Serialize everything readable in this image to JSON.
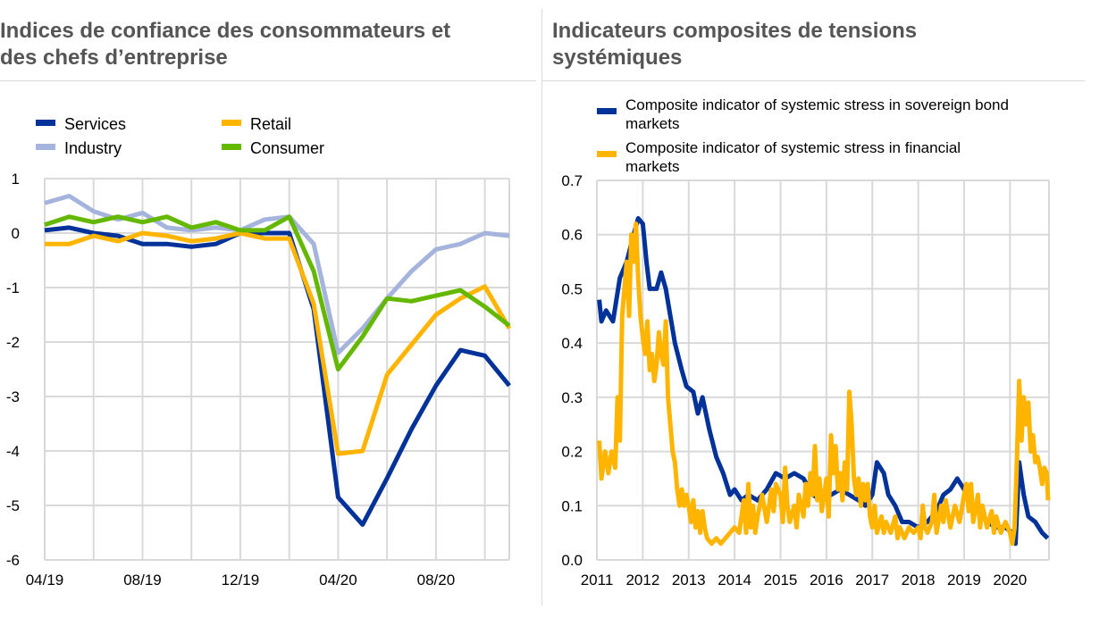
{
  "left_panel": {
    "title": "Indices de confiance des consommateurs et\ndes chefs d’entreprise",
    "chart_data": {
      "type": "line",
      "x": [
        "04/19",
        "05/19",
        "06/19",
        "07/19",
        "08/19",
        "09/19",
        "10/19",
        "11/19",
        "12/19",
        "01/20",
        "02/20",
        "03/20",
        "04/20",
        "05/20",
        "06/20",
        "07/20",
        "08/20",
        "09/20",
        "10/20",
        "11/20"
      ],
      "x_tick_labels": [
        "04/19",
        "08/19",
        "12/19",
        "04/20",
        "08/20"
      ],
      "ylim": [
        -6,
        1
      ],
      "y_ticks": [
        "1",
        "0",
        "-1",
        "-2",
        "-3",
        "-4",
        "-5",
        "-6"
      ],
      "grid": true,
      "legend_position": "top",
      "series": [
        {
          "name": "Services",
          "color": "#003299",
          "values": [
            0.05,
            0.1,
            0.0,
            -0.05,
            -0.2,
            -0.2,
            -0.25,
            -0.2,
            0.0,
            0.0,
            0.0,
            -1.4,
            -4.85,
            -5.35,
            -4.5,
            -3.6,
            -2.8,
            -2.15,
            -2.25,
            -2.8
          ]
        },
        {
          "name": "Industry",
          "color": "#a4b4dc",
          "values": [
            0.55,
            0.68,
            0.4,
            0.25,
            0.37,
            0.1,
            0.05,
            0.1,
            0.05,
            0.25,
            0.3,
            -0.2,
            -2.2,
            -1.75,
            -1.2,
            -0.7,
            -0.3,
            -0.2,
            0.0,
            -0.05
          ]
        },
        {
          "name": "Retail",
          "color": "#ffb400",
          "values": [
            -0.2,
            -0.2,
            -0.05,
            -0.15,
            0.0,
            -0.05,
            -0.15,
            -0.1,
            0.0,
            -0.1,
            -0.1,
            -1.3,
            -4.05,
            -4.0,
            -2.6,
            -2.05,
            -1.5,
            -1.2,
            -0.98,
            -1.75
          ]
        },
        {
          "name": "Consumer",
          "color": "#65b800",
          "values": [
            0.15,
            0.3,
            0.2,
            0.3,
            0.2,
            0.3,
            0.1,
            0.2,
            0.05,
            0.05,
            0.3,
            -0.7,
            -2.5,
            -1.9,
            -1.2,
            -1.25,
            -1.15,
            -1.05,
            -1.35,
            -1.7
          ]
        }
      ]
    }
  },
  "right_panel": {
    "title": "Indicateurs composites de tensions\nsystémiques",
    "chart_data": {
      "type": "line",
      "x_tick_labels": [
        "2011",
        "2012",
        "2013",
        "2014",
        "2015",
        "2016",
        "2017",
        "2018",
        "2019",
        "2020"
      ],
      "xlim": [
        2011.0,
        2020.85
      ],
      "ylim": [
        0.0,
        0.7
      ],
      "y_ticks": [
        "0.7",
        "0.6",
        "0.5",
        "0.4",
        "0.3",
        "0.2",
        "0.1",
        "0.0"
      ],
      "grid": true,
      "legend_position": "top",
      "series": [
        {
          "name": "Composite indicator of systemic stress in sovereign bond\nmarkets",
          "color": "#003299",
          "points": [
            [
              2011.05,
              0.48
            ],
            [
              2011.1,
              0.44
            ],
            [
              2011.2,
              0.46
            ],
            [
              2011.35,
              0.44
            ],
            [
              2011.5,
              0.52
            ],
            [
              2011.65,
              0.55
            ],
            [
              2011.8,
              0.6
            ],
            [
              2011.9,
              0.63
            ],
            [
              2012.0,
              0.62
            ],
            [
              2012.08,
              0.55
            ],
            [
              2012.15,
              0.5
            ],
            [
              2012.3,
              0.5
            ],
            [
              2012.4,
              0.53
            ],
            [
              2012.5,
              0.5
            ],
            [
              2012.6,
              0.45
            ],
            [
              2012.7,
              0.4
            ],
            [
              2012.85,
              0.35
            ],
            [
              2012.95,
              0.32
            ],
            [
              2013.1,
              0.31
            ],
            [
              2013.2,
              0.27
            ],
            [
              2013.3,
              0.3
            ],
            [
              2013.45,
              0.24
            ],
            [
              2013.6,
              0.19
            ],
            [
              2013.75,
              0.16
            ],
            [
              2013.9,
              0.12
            ],
            [
              2014.0,
              0.13
            ],
            [
              2014.15,
              0.11
            ],
            [
              2014.3,
              0.12
            ],
            [
              2014.5,
              0.11
            ],
            [
              2014.7,
              0.13
            ],
            [
              2014.9,
              0.16
            ],
            [
              2015.1,
              0.15
            ],
            [
              2015.3,
              0.16
            ],
            [
              2015.5,
              0.15
            ],
            [
              2015.7,
              0.12
            ],
            [
              2015.9,
              0.11
            ],
            [
              2016.1,
              0.12
            ],
            [
              2016.3,
              0.13
            ],
            [
              2016.5,
              0.12
            ],
            [
              2016.7,
              0.11
            ],
            [
              2016.85,
              0.1
            ],
            [
              2017.0,
              0.12
            ],
            [
              2017.1,
              0.18
            ],
            [
              2017.25,
              0.16
            ],
            [
              2017.35,
              0.12
            ],
            [
              2017.5,
              0.1
            ],
            [
              2017.65,
              0.07
            ],
            [
              2017.8,
              0.07
            ],
            [
              2018.0,
              0.06
            ],
            [
              2018.2,
              0.07
            ],
            [
              2018.4,
              0.09
            ],
            [
              2018.55,
              0.12
            ],
            [
              2018.7,
              0.13
            ],
            [
              2018.85,
              0.15
            ],
            [
              2019.0,
              0.13
            ],
            [
              2019.15,
              0.1
            ],
            [
              2019.3,
              0.09
            ],
            [
              2019.5,
              0.07
            ],
            [
              2019.7,
              0.06
            ],
            [
              2019.9,
              0.06
            ],
            [
              2020.05,
              0.05
            ],
            [
              2020.12,
              0.03
            ],
            [
              2020.2,
              0.18
            ],
            [
              2020.3,
              0.12
            ],
            [
              2020.4,
              0.08
            ],
            [
              2020.55,
              0.07
            ],
            [
              2020.7,
              0.05
            ],
            [
              2020.82,
              0.04
            ]
          ]
        },
        {
          "name": "Composite indicator of systemic stress in financial\nmarkets",
          "color": "#ffb400",
          "points": [
            [
              2011.05,
              0.22
            ],
            [
              2011.1,
              0.15
            ],
            [
              2011.18,
              0.2
            ],
            [
              2011.25,
              0.16
            ],
            [
              2011.32,
              0.2
            ],
            [
              2011.4,
              0.17
            ],
            [
              2011.45,
              0.3
            ],
            [
              2011.5,
              0.22
            ],
            [
              2011.55,
              0.45
            ],
            [
              2011.6,
              0.5
            ],
            [
              2011.65,
              0.55
            ],
            [
              2011.7,
              0.45
            ],
            [
              2011.75,
              0.6
            ],
            [
              2011.8,
              0.55
            ],
            [
              2011.85,
              0.62
            ],
            [
              2011.9,
              0.52
            ],
            [
              2011.95,
              0.45
            ],
            [
              2012.0,
              0.41
            ],
            [
              2012.05,
              0.38
            ],
            [
              2012.1,
              0.44
            ],
            [
              2012.15,
              0.35
            ],
            [
              2012.2,
              0.38
            ],
            [
              2012.25,
              0.33
            ],
            [
              2012.3,
              0.36
            ],
            [
              2012.35,
              0.42
            ],
            [
              2012.4,
              0.38
            ],
            [
              2012.45,
              0.36
            ],
            [
              2012.5,
              0.44
            ],
            [
              2012.55,
              0.3
            ],
            [
              2012.6,
              0.25
            ],
            [
              2012.65,
              0.2
            ],
            [
              2012.7,
              0.18
            ],
            [
              2012.75,
              0.13
            ],
            [
              2012.8,
              0.1
            ],
            [
              2012.85,
              0.13
            ],
            [
              2012.9,
              0.1
            ],
            [
              2012.95,
              0.12
            ],
            [
              2013.0,
              0.1
            ],
            [
              2013.05,
              0.07
            ],
            [
              2013.1,
              0.11
            ],
            [
              2013.15,
              0.06
            ],
            [
              2013.2,
              0.09
            ],
            [
              2013.25,
              0.05
            ],
            [
              2013.3,
              0.09
            ],
            [
              2013.35,
              0.06
            ],
            [
              2013.4,
              0.04
            ],
            [
              2013.5,
              0.03
            ],
            [
              2013.6,
              0.04
            ],
            [
              2013.7,
              0.03
            ],
            [
              2013.8,
              0.04
            ],
            [
              2013.9,
              0.05
            ],
            [
              2014.0,
              0.06
            ],
            [
              2014.1,
              0.05
            ],
            [
              2014.2,
              0.11
            ],
            [
              2014.25,
              0.05
            ],
            [
              2014.3,
              0.14
            ],
            [
              2014.35,
              0.06
            ],
            [
              2014.4,
              0.1
            ],
            [
              2014.45,
              0.05
            ],
            [
              2014.5,
              0.08
            ],
            [
              2014.6,
              0.12
            ],
            [
              2014.7,
              0.07
            ],
            [
              2014.8,
              0.13
            ],
            [
              2014.85,
              0.09
            ],
            [
              2014.9,
              0.14
            ],
            [
              2015.0,
              0.12
            ],
            [
              2015.05,
              0.07
            ],
            [
              2015.1,
              0.17
            ],
            [
              2015.15,
              0.1
            ],
            [
              2015.2,
              0.07
            ],
            [
              2015.3,
              0.1
            ],
            [
              2015.35,
              0.06
            ],
            [
              2015.4,
              0.12
            ],
            [
              2015.5,
              0.08
            ],
            [
              2015.55,
              0.14
            ],
            [
              2015.6,
              0.1
            ],
            [
              2015.65,
              0.16
            ],
            [
              2015.7,
              0.12
            ],
            [
              2015.75,
              0.21
            ],
            [
              2015.8,
              0.11
            ],
            [
              2015.85,
              0.15
            ],
            [
              2015.9,
              0.09
            ],
            [
              2015.95,
              0.12
            ],
            [
              2016.0,
              0.15
            ],
            [
              2016.05,
              0.08
            ],
            [
              2016.1,
              0.23
            ],
            [
              2016.15,
              0.16
            ],
            [
              2016.2,
              0.21
            ],
            [
              2016.25,
              0.13
            ],
            [
              2016.3,
              0.16
            ],
            [
              2016.35,
              0.11
            ],
            [
              2016.4,
              0.18
            ],
            [
              2016.45,
              0.13
            ],
            [
              2016.5,
              0.31
            ],
            [
              2016.55,
              0.25
            ],
            [
              2016.6,
              0.15
            ],
            [
              2016.65,
              0.12
            ],
            [
              2016.7,
              0.15
            ],
            [
              2016.75,
              0.1
            ],
            [
              2016.8,
              0.14
            ],
            [
              2016.85,
              0.11
            ],
            [
              2016.9,
              0.14
            ],
            [
              2016.95,
              0.08
            ],
            [
              2017.0,
              0.06
            ],
            [
              2017.05,
              0.1
            ],
            [
              2017.1,
              0.05
            ],
            [
              2017.2,
              0.08
            ],
            [
              2017.25,
              0.05
            ],
            [
              2017.3,
              0.07
            ],
            [
              2017.4,
              0.05
            ],
            [
              2017.5,
              0.08
            ],
            [
              2017.55,
              0.04
            ],
            [
              2017.6,
              0.06
            ],
            [
              2017.7,
              0.04
            ],
            [
              2017.8,
              0.06
            ],
            [
              2017.9,
              0.05
            ],
            [
              2018.0,
              0.06
            ],
            [
              2018.05,
              0.04
            ],
            [
              2018.1,
              0.1
            ],
            [
              2018.15,
              0.06
            ],
            [
              2018.2,
              0.05
            ],
            [
              2018.3,
              0.07
            ],
            [
              2018.35,
              0.12
            ],
            [
              2018.4,
              0.05
            ],
            [
              2018.5,
              0.1
            ],
            [
              2018.55,
              0.07
            ],
            [
              2018.6,
              0.11
            ],
            [
              2018.7,
              0.06
            ],
            [
              2018.8,
              0.1
            ],
            [
              2018.9,
              0.07
            ],
            [
              2019.0,
              0.12
            ],
            [
              2019.05,
              0.14
            ],
            [
              2019.1,
              0.09
            ],
            [
              2019.15,
              0.14
            ],
            [
              2019.2,
              0.07
            ],
            [
              2019.3,
              0.12
            ],
            [
              2019.35,
              0.06
            ],
            [
              2019.4,
              0.1
            ],
            [
              2019.5,
              0.06
            ],
            [
              2019.6,
              0.09
            ],
            [
              2019.65,
              0.05
            ],
            [
              2019.7,
              0.08
            ],
            [
              2019.8,
              0.05
            ],
            [
              2019.9,
              0.07
            ],
            [
              2020.0,
              0.05
            ],
            [
              2020.05,
              0.03
            ],
            [
              2020.1,
              0.06
            ],
            [
              2020.15,
              0.18
            ],
            [
              2020.2,
              0.33
            ],
            [
              2020.25,
              0.22
            ],
            [
              2020.3,
              0.3
            ],
            [
              2020.35,
              0.25
            ],
            [
              2020.4,
              0.29
            ],
            [
              2020.45,
              0.2
            ],
            [
              2020.5,
              0.23
            ],
            [
              2020.55,
              0.18
            ],
            [
              2020.6,
              0.19
            ],
            [
              2020.65,
              0.17
            ],
            [
              2020.7,
              0.14
            ],
            [
              2020.75,
              0.17
            ],
            [
              2020.8,
              0.16
            ],
            [
              2020.83,
              0.11
            ]
          ]
        }
      ]
    }
  }
}
